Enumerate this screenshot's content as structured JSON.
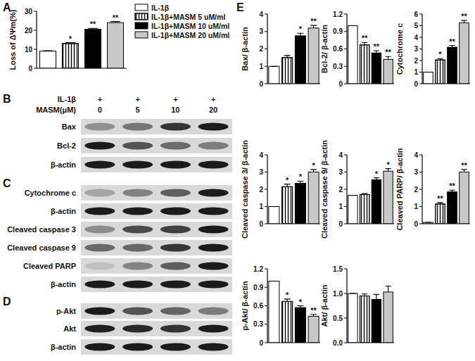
{
  "chart_data": [
    {
      "type": "bar",
      "title": "A",
      "ylabel": "Loss of ΔΨm(%)",
      "categories": [
        null
      ],
      "series": [
        {
          "name": "IL-1β",
          "color": "#ffffff",
          "values": [
            9
          ],
          "errors": [
            0.2
          ],
          "significance": [
            null
          ]
        },
        {
          "name": "IL-1β+MASM 5 uM/ml",
          "color": "#ffffff",
          "values": [
            13
          ],
          "errors": [
            0.5
          ],
          "significance": [
            "*"
          ]
        },
        {
          "name": "IL-1β+MASM 10 uM/ml",
          "color": "#000000",
          "values": [
            20.5
          ],
          "errors": [
            0.5
          ],
          "significance": [
            "**"
          ]
        },
        {
          "name": "IL-1β+MASM 20 uM/ml",
          "color": "#c8c8c8",
          "values": [
            24
          ],
          "errors": [
            0.6
          ],
          "significance": [
            "**"
          ]
        }
      ],
      "ylim": [
        0,
        30
      ],
      "yticks": [
        0,
        10,
        20,
        30
      ],
      "legend": "right",
      "tick_labels": "y"
    },
    {
      "type": "bar",
      "ylabel": "Bax/ β-actin",
      "categories": [
        null,
        null,
        null,
        null
      ],
      "values": [
        1,
        1.5,
        2.75,
        3.2
      ],
      "errors": [
        0,
        0.12,
        0.15,
        0.15
      ],
      "significance": [
        null,
        null,
        "*",
        "**"
      ],
      "colors": [
        "#ffffff",
        "#ffffff",
        "#000000",
        "#c8c8c8"
      ],
      "ylim": [
        0,
        4
      ],
      "yticks": [
        0,
        1,
        2,
        3,
        4
      ],
      "tick_labels": "y"
    },
    {
      "type": "bar",
      "ylabel": "Bcl-2/ β-actin",
      "categories": [
        null,
        null,
        null,
        null
      ],
      "values": [
        1,
        0.67,
        0.53,
        0.42
      ],
      "errors": [
        0,
        0.04,
        0.04,
        0.05
      ],
      "significance": [
        null,
        "**",
        "**",
        "**"
      ],
      "colors": [
        "#ffffff",
        "#ffffff",
        "#000000",
        "#c8c8c8"
      ],
      "ylim": [
        0,
        1.2
      ],
      "yticks": [
        0,
        0.3,
        0.6,
        0.9,
        1.2
      ],
      "tick_labels": "y"
    },
    {
      "type": "bar",
      "ylabel": "Cytochrome c",
      "categories": [
        null,
        null,
        null,
        null
      ],
      "values": [
        1,
        2.05,
        3.15,
        5.25
      ],
      "errors": [
        0,
        0.12,
        0.15,
        0.2
      ],
      "significance": [
        null,
        "*",
        "**",
        "**"
      ],
      "colors": [
        "#ffffff",
        "#ffffff",
        "#000000",
        "#c8c8c8"
      ],
      "ylim": [
        0,
        6
      ],
      "yticks": [
        0,
        1,
        2,
        3,
        4,
        5,
        6
      ],
      "tick_labels": "y"
    },
    {
      "type": "bar",
      "ylabel": "Cleaved caspase 3/ β-actin",
      "categories": [
        null,
        null,
        null,
        null
      ],
      "values": [
        1,
        2.15,
        2.35,
        3.0
      ],
      "errors": [
        0,
        0.15,
        0.12,
        0.15
      ],
      "significance": [
        null,
        "*",
        "*",
        "*"
      ],
      "colors": [
        "#ffffff",
        "#ffffff",
        "#000000",
        "#c8c8c8"
      ],
      "ylim": [
        0,
        4
      ],
      "yticks": [
        0,
        1,
        2,
        3,
        4
      ],
      "tick_labels": "y"
    },
    {
      "type": "bar",
      "ylabel": "Cleaved caspase 9/ β-actin",
      "categories": [
        null,
        null,
        null,
        null
      ],
      "values": [
        1.65,
        1.7,
        2.55,
        3.05
      ],
      "errors": [
        0,
        0.05,
        0.12,
        0.15
      ],
      "significance": [
        null,
        null,
        "*",
        "*"
      ],
      "colors": [
        "#ffffff",
        "#ffffff",
        "#000000",
        "#c8c8c8"
      ],
      "ylim": [
        0,
        4
      ],
      "yticks": [
        0,
        1,
        2,
        3,
        4
      ],
      "tick_labels": "y"
    },
    {
      "type": "bar",
      "ylabel": "Cleaved PARP/ β-actin",
      "categories": [
        null,
        null,
        null,
        null
      ],
      "values": [
        0.08,
        1.15,
        1.85,
        3.0
      ],
      "errors": [
        0,
        0.08,
        0.1,
        0.15
      ],
      "significance": [
        null,
        "**",
        "**",
        "**"
      ],
      "colors": [
        "#ffffff",
        "#ffffff",
        "#000000",
        "#c8c8c8"
      ],
      "ylim": [
        0,
        4
      ],
      "yticks": [
        0,
        1,
        2,
        3,
        4
      ],
      "tick_labels": "y"
    },
    {
      "type": "bar",
      "ylabel": "p-Akt/ β-actin",
      "categories": [
        null,
        null,
        null,
        null
      ],
      "values": [
        1,
        0.67,
        0.57,
        0.43
      ],
      "errors": [
        0,
        0.04,
        0.03,
        0.03
      ],
      "significance": [
        null,
        "*",
        "*",
        "**"
      ],
      "colors": [
        "#ffffff",
        "#ffffff",
        "#000000",
        "#c8c8c8"
      ],
      "ylim": [
        0,
        1.2
      ],
      "yticks": [
        0,
        0.3,
        0.6,
        0.9,
        1.2
      ],
      "tick_labels": "y"
    },
    {
      "type": "bar",
      "ylabel": "Akt/ β-actin",
      "categories": [
        null,
        null,
        null,
        null
      ],
      "values": [
        1,
        0.95,
        0.88,
        1.03
      ],
      "errors": [
        0,
        0.04,
        0.1,
        0.12
      ],
      "colors": [
        "#ffffff",
        "#ffffff",
        "#000000",
        "#c8c8c8"
      ],
      "ylim": [
        0,
        1.5
      ],
      "yticks": [
        {
          "value": 0,
          "label": "0.0"
        },
        {
          "value": 0.5,
          "label": "0.5"
        },
        {
          "value": 1,
          "label": "1.0"
        },
        {
          "value": 1.5,
          "label": "1.5"
        }
      ],
      "tick_labels": "y"
    }
  ],
  "blots": [
    {
      "label": "B",
      "header": [
        {
          "label": "IL-1β",
          "values": [
            "+",
            "+",
            "+",
            "+"
          ]
        },
        {
          "label": "MASM(μM)",
          "values": [
            0,
            5,
            10,
            20
          ]
        }
      ],
      "rows": [
        {
          "label": "Bax",
          "bands": [
            1,
            1.5,
            2.75,
            3.2
          ]
        },
        {
          "label": "Bcl-2",
          "bands": [
            1,
            0.67,
            0.53,
            0.42
          ]
        },
        {
          "label": "β-actin",
          "bands": [
            1,
            1,
            1,
            1
          ]
        }
      ]
    },
    {
      "label": "C",
      "rows": [
        {
          "label": "Cytochrome c",
          "bands": [
            1,
            2.05,
            3.15,
            5.25
          ]
        },
        {
          "label": "β-actin",
          "bands": [
            1,
            1,
            1,
            1
          ]
        },
        {
          "label": "Cleaved caspase 3",
          "bands": [
            1,
            2.15,
            2.35,
            3.0
          ]
        },
        {
          "label": "Cleaved caspase 9",
          "bands": [
            1.65,
            1.7,
            2.55,
            3.05
          ]
        },
        {
          "label": "Cleaved PARP",
          "bands": [
            0.08,
            1.15,
            1.85,
            3.0
          ]
        },
        {
          "label": "β-actin",
          "bands": [
            1,
            1,
            1,
            1
          ]
        }
      ]
    },
    {
      "label": "D",
      "rows": [
        {
          "label": "p-Akt",
          "bands": [
            1,
            0.67,
            0.57,
            0.43
          ]
        },
        {
          "label": "Akt",
          "bands": [
            1,
            0.95,
            0.88,
            1.03
          ]
        },
        {
          "label": "β-actin",
          "bands": [
            1,
            1,
            1,
            1
          ]
        }
      ]
    }
  ],
  "panel_e": {
    "label": "E"
  }
}
